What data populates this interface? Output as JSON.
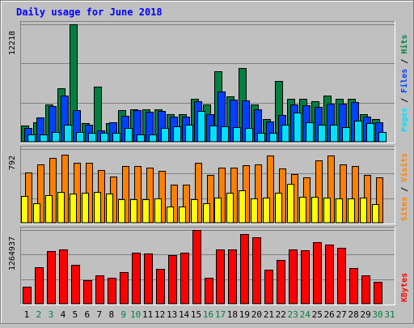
{
  "chart_data": {
    "type": "bar",
    "title": "Daily usage for June 2018",
    "days": [
      "1",
      "2",
      "3",
      "4",
      "5",
      "6",
      "7",
      "8",
      "9",
      "10",
      "11",
      "12",
      "13",
      "14",
      "15",
      "16",
      "17",
      "18",
      "19",
      "20",
      "21",
      "22",
      "23",
      "24",
      "25",
      "26",
      "27",
      "28",
      "29",
      "30",
      "31"
    ],
    "weekend_days": [
      "2",
      "3",
      "9",
      "10",
      "16",
      "17",
      "23",
      "24",
      "30",
      "31"
    ],
    "panels": [
      {
        "id": "hits",
        "ymax_label": "12218",
        "ymax": 12218,
        "legend": [
          "Pages",
          "Files",
          "Hits"
        ],
        "series": [
          {
            "name": "Hits",
            "color": "#008040",
            "values": [
              1700,
              2000,
              3900,
              5600,
              12200,
              1900,
              5700,
              1900,
              3300,
              3400,
              3400,
              3400,
              2900,
              2900,
              4500,
              3900,
              7300,
              4700,
              7700,
              3900,
              2400,
              6300,
              4500,
              4500,
              4200,
              4800,
              4500,
              4500,
              2900,
              2400,
              0
            ]
          },
          {
            "name": "Files",
            "color": "#0040ff",
            "values": [
              1400,
              2500,
              3700,
              4800,
              3300,
              1800,
              1200,
              2000,
              2700,
              3300,
              3100,
              3200,
              2600,
              2600,
              4200,
              2900,
              5200,
              4400,
              4300,
              3400,
              2100,
              2800,
              3900,
              3800,
              3600,
              4000,
              4000,
              4100,
              2600,
              2000,
              0
            ]
          },
          {
            "name": "Pages",
            "color": "#00e0ff",
            "values": [
              800,
              800,
              1000,
              1800,
              1000,
              900,
              900,
              900,
              1400,
              800,
              800,
              1400,
              1600,
              1800,
              3200,
              1700,
              1600,
              1500,
              1400,
              900,
              900,
              1800,
              3000,
              2000,
              1800,
              1800,
              1500,
              2200,
              1900,
              1000,
              0
            ]
          }
        ]
      },
      {
        "id": "visits",
        "ymax_label": "792",
        "ymax": 792,
        "legend": [
          "Sites",
          "Visits"
        ],
        "series": [
          {
            "name": "Visits",
            "color": "#ff8000",
            "values": [
              540,
              630,
              700,
              730,
              640,
              640,
              570,
              500,
              610,
              610,
              590,
              560,
              410,
              410,
              640,
              510,
              590,
              590,
              620,
              630,
              720,
              580,
              520,
              490,
              670,
              720,
              630,
              610,
              510,
              490,
              0
            ]
          },
          {
            "name": "Sites",
            "color": "#ffff00",
            "values": [
              290,
              210,
              300,
              330,
              310,
              320,
              330,
              310,
              250,
              250,
              250,
              260,
              170,
              170,
              250,
              210,
              270,
              320,
              350,
              260,
              270,
              320,
              420,
              280,
              280,
              270,
              260,
              260,
              270,
              200,
              0
            ]
          }
        ]
      },
      {
        "id": "kbytes",
        "ymax_label": "1264937",
        "ymax": 1264937,
        "legend": [
          "KBytes"
        ],
        "series": [
          {
            "name": "KBytes",
            "color": "#ff0000",
            "values": [
              290000,
              630000,
              910000,
              930000,
              670000,
              400000,
              490000,
              450000,
              540000,
              870000,
              860000,
              600000,
              840000,
              870000,
              1260000,
              450000,
              930000,
              930000,
              1200000,
              1140000,
              580000,
              750000,
              930000,
              920000,
              1060000,
              1020000,
              960000,
              610000,
              480000,
              380000,
              0
            ]
          }
        ]
      }
    ],
    "grid": true,
    "legend_position": "right"
  }
}
